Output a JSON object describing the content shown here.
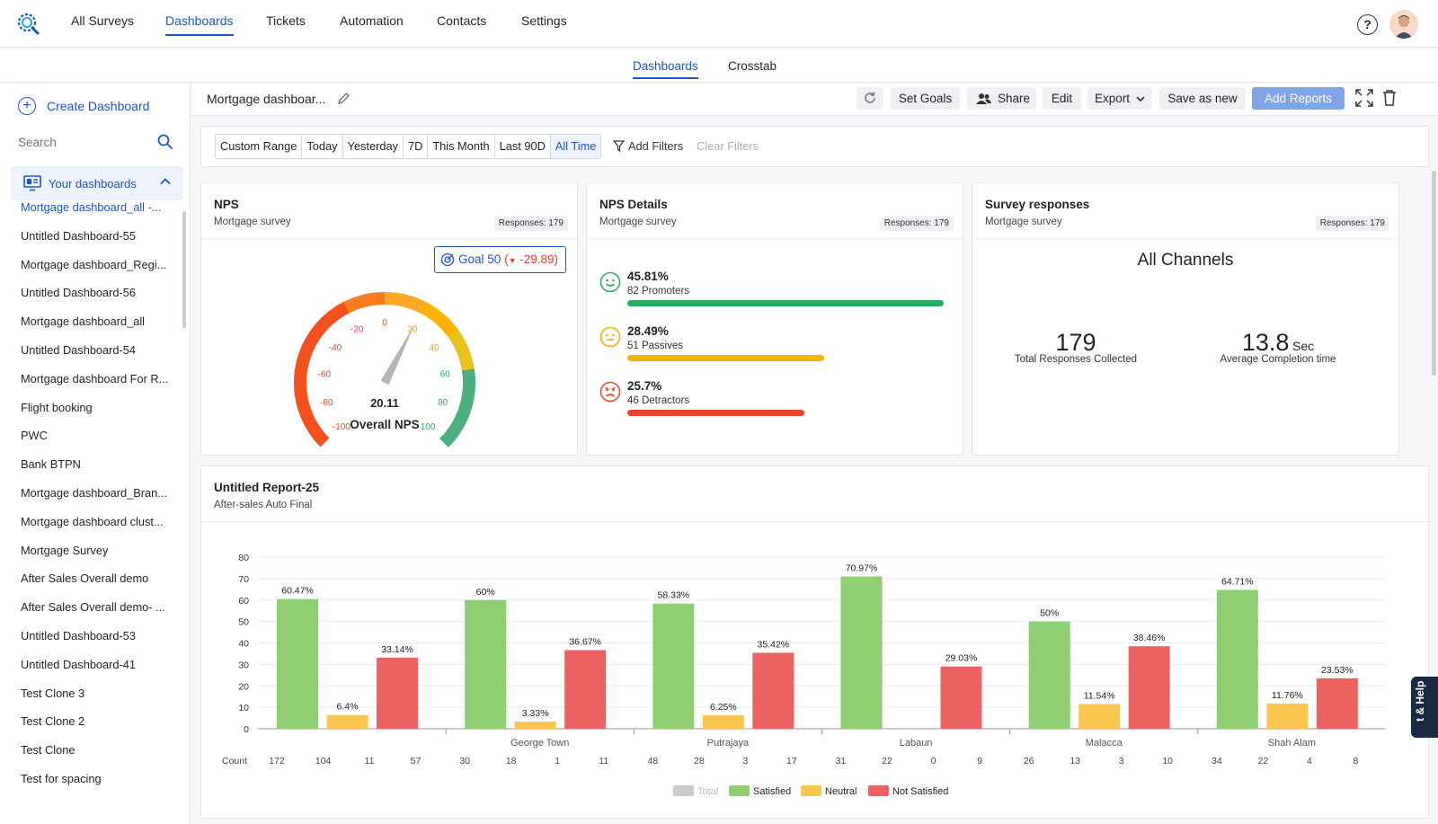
{
  "topnav": {
    "items": [
      "All Surveys",
      "Dashboards",
      "Tickets",
      "Automation",
      "Contacts",
      "Settings"
    ],
    "active": "Dashboards",
    "help_icon": "question-circle-icon",
    "help_glyph": "?"
  },
  "subnav": {
    "tabs": [
      "Dashboards",
      "Crosstab"
    ],
    "active": "Dashboards"
  },
  "sidebar": {
    "create_label": "Create Dashboard",
    "search_placeholder": "Search",
    "section_label": "Your dashboards",
    "items": [
      "Mortgage dashboard_all -...",
      "Untitled Dashboard-55",
      "Mortgage dashboard_Regi...",
      "Untitled Dashboard-56",
      "Mortgage dashboard_all",
      "Untitled Dashboard-54",
      "Mortgage dashboard For R...",
      "Flight booking",
      "PWC",
      "Bank BTPN",
      "Mortgage dashboard_Bran...",
      "Mortgage dashboard clust...",
      "Mortgage Survey",
      "After Sales Overall demo",
      "After Sales Overall demo- ...",
      "Untitled Dashboard-53",
      "Untitled Dashboard-41",
      "Test Clone 3",
      "Test Clone 2",
      "Test Clone",
      "Test for spacing"
    ],
    "active_index": 0
  },
  "header": {
    "title": "Mortgage dashboar...",
    "buttons": {
      "set_goals": "Set Goals",
      "share": "Share",
      "edit": "Edit",
      "export": "Export",
      "save_as_new": "Save as new",
      "add_reports": "Add Reports"
    }
  },
  "filters": {
    "ranges": [
      "Custom Range",
      "Today",
      "Yesterday",
      "7D",
      "This Month",
      "Last 90D",
      "All Time"
    ],
    "active": "All Time",
    "add_filters": "Add Filters",
    "clear_filters": "Clear Filters"
  },
  "nps_card": {
    "title": "NPS",
    "subtitle": "Mortgage survey",
    "responses": "Responses: 179",
    "goal_label": "Goal 50",
    "goal_delta": "-29.89",
    "score": 20.11,
    "score_label": "20.11",
    "caption": "Overall NPS",
    "gauge_ticks": [
      "-100",
      "-80",
      "-60",
      "-40",
      "-20",
      "0",
      "20",
      "40",
      "60",
      "80",
      "100"
    ]
  },
  "nps_details": {
    "title": "NPS Details",
    "subtitle": "Mortgage survey",
    "responses": "Responses: 179",
    "rows": [
      {
        "pct": "45.81%",
        "label": "82 Promoters",
        "value": 45.81,
        "color": "#27ae60",
        "icon": "smile-face-icon"
      },
      {
        "pct": "28.49%",
        "label": "51 Passives",
        "value": 28.49,
        "color": "#f5b400",
        "icon": "neutral-face-icon"
      },
      {
        "pct": "25.7%",
        "label": "46 Detractors",
        "value": 25.7,
        "color": "#e8472e",
        "icon": "angry-face-icon"
      }
    ]
  },
  "survey_responses": {
    "title": "Survey responses",
    "subtitle": "Mortgage survey",
    "responses": "Responses: 179",
    "channel": "All Channels",
    "total": "179",
    "total_label": "Total Responses Collected",
    "avg": "13.8",
    "avg_unit": "Sec",
    "avg_label": "Average Completion time"
  },
  "report": {
    "title": "Untitled Report-25",
    "subtitle": "After-sales Auto Final"
  },
  "chart_data": {
    "type": "bar",
    "categories": [
      "",
      "George Town",
      "Putrajaya",
      "Labaun",
      "Malacca",
      "Shah Alam"
    ],
    "series": [
      {
        "name": "Satisfied",
        "color": "#8fce72",
        "values": [
          60.47,
          60,
          58.33,
          70.97,
          50,
          64.71
        ],
        "labels": [
          "60.47%",
          "60%",
          "58.33%",
          "70.97%",
          "50%",
          "64.71%"
        ]
      },
      {
        "name": "Neutral",
        "color": "#f9c74f",
        "values": [
          6.4,
          3.33,
          6.25,
          0,
          11.54,
          11.76
        ],
        "labels": [
          "6.4%",
          "3.33%",
          "6.25%",
          "",
          "11.54%",
          "11.76%"
        ]
      },
      {
        "name": "Not Satisfied",
        "color": "#ea6262",
        "values": [
          33.14,
          36.67,
          35.42,
          29.03,
          38.46,
          23.53
        ],
        "labels": [
          "33.14%",
          "36.67%",
          "35.42%",
          "29.03%",
          "38.46%",
          "23.53%"
        ]
      }
    ],
    "legend": [
      {
        "name": "Total",
        "color": "#cccccc",
        "muted": true
      },
      {
        "name": "Satisfied",
        "color": "#8fce72"
      },
      {
        "name": "Neutral",
        "color": "#f9c74f"
      },
      {
        "name": "Not Satisfied",
        "color": "#ea6262"
      }
    ],
    "count_label": "Count",
    "counts": [
      [
        "172",
        "104",
        "11",
        "57"
      ],
      [
        "30",
        "18",
        "1",
        "11"
      ],
      [
        "48",
        "28",
        "3",
        "17"
      ],
      [
        "31",
        "22",
        "0",
        "9"
      ],
      [
        "26",
        "13",
        "3",
        "10"
      ],
      [
        "34",
        "22",
        "4",
        "8"
      ]
    ],
    "ylim": [
      0,
      80
    ],
    "yticks": [
      0,
      10,
      20,
      30,
      40,
      50,
      60,
      70,
      80
    ],
    "grid": true,
    "legend_position": "bottom"
  },
  "help_tab": "t & Help"
}
